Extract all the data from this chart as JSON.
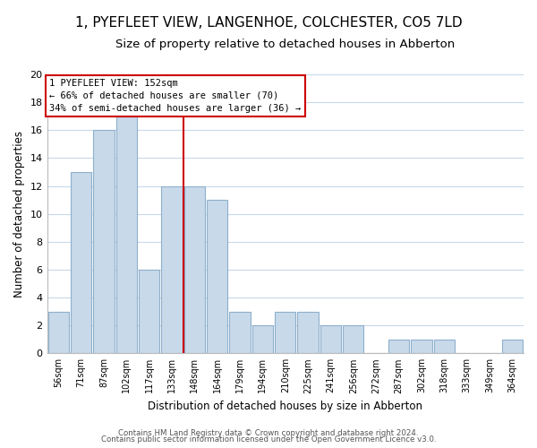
{
  "title": "1, PYEFLEET VIEW, LANGENHOE, COLCHESTER, CO5 7LD",
  "subtitle": "Size of property relative to detached houses in Abberton",
  "xlabel": "Distribution of detached houses by size in Abberton",
  "ylabel": "Number of detached properties",
  "bin_labels": [
    "56sqm",
    "71sqm",
    "87sqm",
    "102sqm",
    "117sqm",
    "133sqm",
    "148sqm",
    "164sqm",
    "179sqm",
    "194sqm",
    "210sqm",
    "225sqm",
    "241sqm",
    "256sqm",
    "272sqm",
    "287sqm",
    "302sqm",
    "318sqm",
    "333sqm",
    "349sqm",
    "364sqm"
  ],
  "bar_heights": [
    3,
    13,
    16,
    17,
    6,
    12,
    12,
    11,
    3,
    2,
    3,
    3,
    2,
    2,
    0,
    1,
    1,
    1,
    0,
    0,
    1
  ],
  "bar_color": "#c8d9ea",
  "bar_edgecolor": "#8eb0cc",
  "vline_x_index": 6,
  "vline_color": "#cc0000",
  "ylim": [
    0,
    20
  ],
  "yticks": [
    0,
    2,
    4,
    6,
    8,
    10,
    12,
    14,
    16,
    18,
    20
  ],
  "annotation_title": "1 PYEFLEET VIEW: 152sqm",
  "annotation_line1": "← 66% of detached houses are smaller (70)",
  "annotation_line2": "34% of semi-detached houses are larger (36) →",
  "annotation_box_color": "#ffffff",
  "annotation_box_edgecolor": "#cc0000",
  "footer1": "Contains HM Land Registry data © Crown copyright and database right 2024.",
  "footer2": "Contains public sector information licensed under the Open Government Licence v3.0.",
  "background_color": "#ffffff",
  "grid_color": "#c8d9ea",
  "title_fontsize": 11,
  "subtitle_fontsize": 9.5
}
